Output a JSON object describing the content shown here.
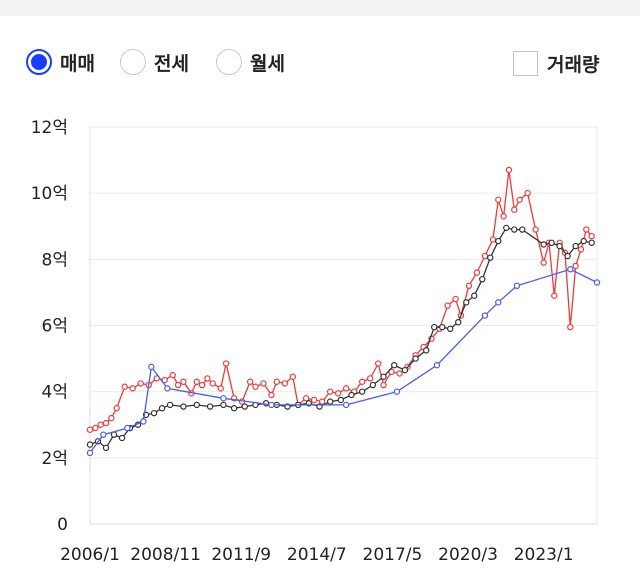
{
  "controls": {
    "radios": [
      {
        "label": "매매",
        "checked": true
      },
      {
        "label": "전세",
        "checked": false
      },
      {
        "label": "월세",
        "checked": false
      }
    ],
    "checkbox": {
      "label": "거래량",
      "checked": false
    }
  },
  "colors": {
    "accent": "#1a3cff",
    "sale": "#ee3b3b",
    "sale_avg": "#333333",
    "jeonse": "#4a5cf0"
  },
  "chart_data": {
    "type": "line",
    "x_tick_labels": [
      "2006/1",
      "2008/11",
      "2011/9",
      "2014/7",
      "2017/5",
      "2020/3",
      "2023/1"
    ],
    "x_tick_values": [
      2006.0,
      2008.833,
      2011.667,
      2014.5,
      2017.333,
      2020.167,
      2023.0
    ],
    "xlim": [
      2006.0,
      2025.0
    ],
    "y_tick_labels": [
      "0",
      "2억",
      "4억",
      "6억",
      "8억",
      "10억",
      "12억"
    ],
    "y_tick_values": [
      0,
      2,
      4,
      6,
      8,
      10,
      12
    ],
    "ylim": [
      0,
      12
    ],
    "grid": true,
    "series": [
      {
        "color": "#ee3b3b",
        "points": [
          [
            2006.0,
            2.85
          ],
          [
            2006.2,
            2.9
          ],
          [
            2006.4,
            3.0
          ],
          [
            2006.6,
            3.05
          ],
          [
            2006.8,
            3.2
          ],
          [
            2007.0,
            3.5
          ],
          [
            2007.3,
            4.15
          ],
          [
            2007.6,
            4.1
          ],
          [
            2007.9,
            4.25
          ],
          [
            2008.2,
            4.2
          ],
          [
            2008.5,
            4.4
          ],
          [
            2008.8,
            4.35
          ],
          [
            2009.1,
            4.5
          ],
          [
            2009.3,
            4.2
          ],
          [
            2009.5,
            4.3
          ],
          [
            2009.8,
            3.95
          ],
          [
            2010.0,
            4.3
          ],
          [
            2010.2,
            4.2
          ],
          [
            2010.4,
            4.4
          ],
          [
            2010.6,
            4.25
          ],
          [
            2010.9,
            4.1
          ],
          [
            2011.1,
            4.85
          ],
          [
            2011.4,
            3.8
          ],
          [
            2011.7,
            3.7
          ],
          [
            2012.0,
            4.3
          ],
          [
            2012.2,
            4.15
          ],
          [
            2012.5,
            4.25
          ],
          [
            2012.8,
            3.9
          ],
          [
            2013.0,
            4.3
          ],
          [
            2013.3,
            4.25
          ],
          [
            2013.6,
            4.45
          ],
          [
            2013.8,
            3.6
          ],
          [
            2014.1,
            3.8
          ],
          [
            2014.4,
            3.75
          ],
          [
            2014.7,
            3.7
          ],
          [
            2015.0,
            4.0
          ],
          [
            2015.3,
            3.95
          ],
          [
            2015.6,
            4.1
          ],
          [
            2015.9,
            4.0
          ],
          [
            2016.2,
            4.3
          ],
          [
            2016.5,
            4.4
          ],
          [
            2016.8,
            4.85
          ],
          [
            2017.0,
            4.2
          ],
          [
            2017.3,
            4.6
          ],
          [
            2017.6,
            4.55
          ],
          [
            2017.9,
            4.75
          ],
          [
            2018.2,
            5.1
          ],
          [
            2018.5,
            5.35
          ],
          [
            2018.8,
            5.6
          ],
          [
            2019.1,
            5.9
          ],
          [
            2019.4,
            6.6
          ],
          [
            2019.7,
            6.8
          ],
          [
            2019.9,
            6.3
          ],
          [
            2020.2,
            7.2
          ],
          [
            2020.5,
            7.6
          ],
          [
            2020.8,
            8.1
          ],
          [
            2021.1,
            8.6
          ],
          [
            2021.3,
            9.8
          ],
          [
            2021.5,
            9.3
          ],
          [
            2021.7,
            10.7
          ],
          [
            2021.9,
            9.5
          ],
          [
            2022.1,
            9.8
          ],
          [
            2022.4,
            10.0
          ],
          [
            2022.7,
            8.9
          ],
          [
            2023.0,
            7.9
          ],
          [
            2023.2,
            8.5
          ],
          [
            2023.4,
            6.9
          ],
          [
            2023.6,
            8.5
          ],
          [
            2023.8,
            8.2
          ],
          [
            2024.0,
            5.95
          ],
          [
            2024.2,
            7.8
          ],
          [
            2024.4,
            8.3
          ],
          [
            2024.6,
            8.9
          ],
          [
            2024.8,
            8.7
          ]
        ]
      },
      {
        "color": "#333333",
        "points": [
          [
            2006.0,
            2.4
          ],
          [
            2006.3,
            2.5
          ],
          [
            2006.6,
            2.3
          ],
          [
            2006.9,
            2.7
          ],
          [
            2007.2,
            2.6
          ],
          [
            2007.5,
            2.9
          ],
          [
            2007.8,
            3.0
          ],
          [
            2008.1,
            3.3
          ],
          [
            2008.4,
            3.35
          ],
          [
            2008.7,
            3.5
          ],
          [
            2009.0,
            3.6
          ],
          [
            2009.5,
            3.55
          ],
          [
            2010.0,
            3.6
          ],
          [
            2010.5,
            3.55
          ],
          [
            2011.0,
            3.6
          ],
          [
            2011.4,
            3.5
          ],
          [
            2011.8,
            3.55
          ],
          [
            2012.2,
            3.6
          ],
          [
            2012.6,
            3.65
          ],
          [
            2013.0,
            3.6
          ],
          [
            2013.4,
            3.55
          ],
          [
            2013.8,
            3.6
          ],
          [
            2014.2,
            3.65
          ],
          [
            2014.6,
            3.55
          ],
          [
            2015.0,
            3.7
          ],
          [
            2015.4,
            3.75
          ],
          [
            2015.8,
            3.9
          ],
          [
            2016.2,
            4.0
          ],
          [
            2016.6,
            4.2
          ],
          [
            2017.0,
            4.45
          ],
          [
            2017.4,
            4.8
          ],
          [
            2017.8,
            4.65
          ],
          [
            2018.2,
            5.0
          ],
          [
            2018.6,
            5.25
          ],
          [
            2018.9,
            5.95
          ],
          [
            2019.2,
            5.95
          ],
          [
            2019.5,
            5.9
          ],
          [
            2019.8,
            6.1
          ],
          [
            2020.1,
            6.7
          ],
          [
            2020.4,
            6.9
          ],
          [
            2020.7,
            7.4
          ],
          [
            2021.0,
            8.05
          ],
          [
            2021.3,
            8.55
          ],
          [
            2021.6,
            8.95
          ],
          [
            2021.9,
            8.9
          ],
          [
            2022.2,
            8.9
          ],
          [
            2023.0,
            8.45
          ],
          [
            2023.3,
            8.5
          ],
          [
            2023.6,
            8.4
          ],
          [
            2023.9,
            8.1
          ],
          [
            2024.2,
            8.4
          ],
          [
            2024.5,
            8.55
          ],
          [
            2024.8,
            8.5
          ]
        ]
      },
      {
        "color": "#4a5cf0",
        "points": [
          [
            2006.0,
            2.15
          ],
          [
            2006.5,
            2.7
          ],
          [
            2007.4,
            2.9
          ],
          [
            2008.0,
            3.1
          ],
          [
            2008.3,
            4.75
          ],
          [
            2008.9,
            4.1
          ],
          [
            2011.0,
            3.8
          ],
          [
            2012.8,
            3.6
          ],
          [
            2015.6,
            3.6
          ],
          [
            2017.5,
            4.0
          ],
          [
            2019.0,
            4.8
          ],
          [
            2020.8,
            6.3
          ],
          [
            2021.3,
            6.7
          ],
          [
            2022.0,
            7.2
          ],
          [
            2024.0,
            7.7
          ],
          [
            2025.0,
            7.3
          ]
        ]
      }
    ]
  }
}
